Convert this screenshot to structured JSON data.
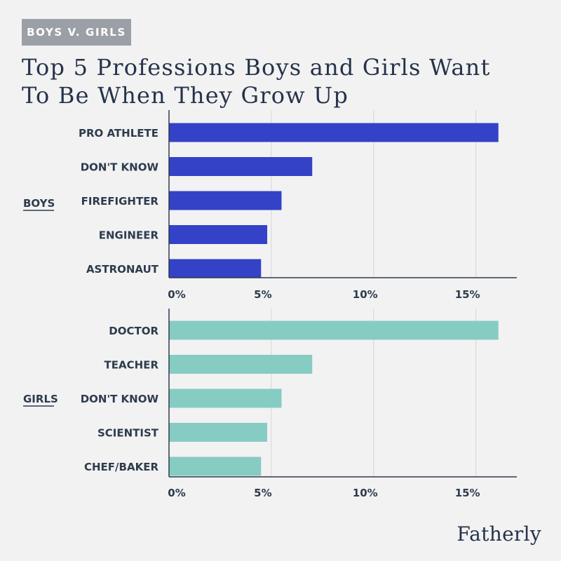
{
  "tag": "BOYS V. GIRLS",
  "title_line1": "Top 5 Professions Boys and Girls Want",
  "title_line2": "To Be When They Grow Up",
  "logo": "Fatherly",
  "chart_data": [
    {
      "type": "bar",
      "orientation": "horizontal",
      "group_label": "BOYS",
      "categories": [
        "PRO ATHLETE",
        "DON'T KNOW",
        "FIREFIGHTER",
        "ENGINEER",
        "ASTRONAUT"
      ],
      "values": [
        16.1,
        7.0,
        5.5,
        4.8,
        4.5
      ],
      "color": "#3342c6",
      "xlim": [
        0,
        17
      ],
      "xticks": [
        0,
        5,
        10,
        15
      ],
      "xtick_labels": [
        "0%",
        "5%",
        "10%",
        "15%"
      ],
      "grid": true
    },
    {
      "type": "bar",
      "orientation": "horizontal",
      "group_label": "GIRLS",
      "categories": [
        "DOCTOR",
        "TEACHER",
        "DON'T KNOW",
        "SCIENTIST",
        "CHEF/BAKER"
      ],
      "values": [
        16.1,
        7.0,
        5.5,
        4.8,
        4.5
      ],
      "color": "#86ccc3",
      "xlim": [
        0,
        17
      ],
      "xticks": [
        0,
        5,
        10,
        15
      ],
      "xtick_labels": [
        "0%",
        "5%",
        "10%",
        "15%"
      ],
      "grid": true
    }
  ]
}
